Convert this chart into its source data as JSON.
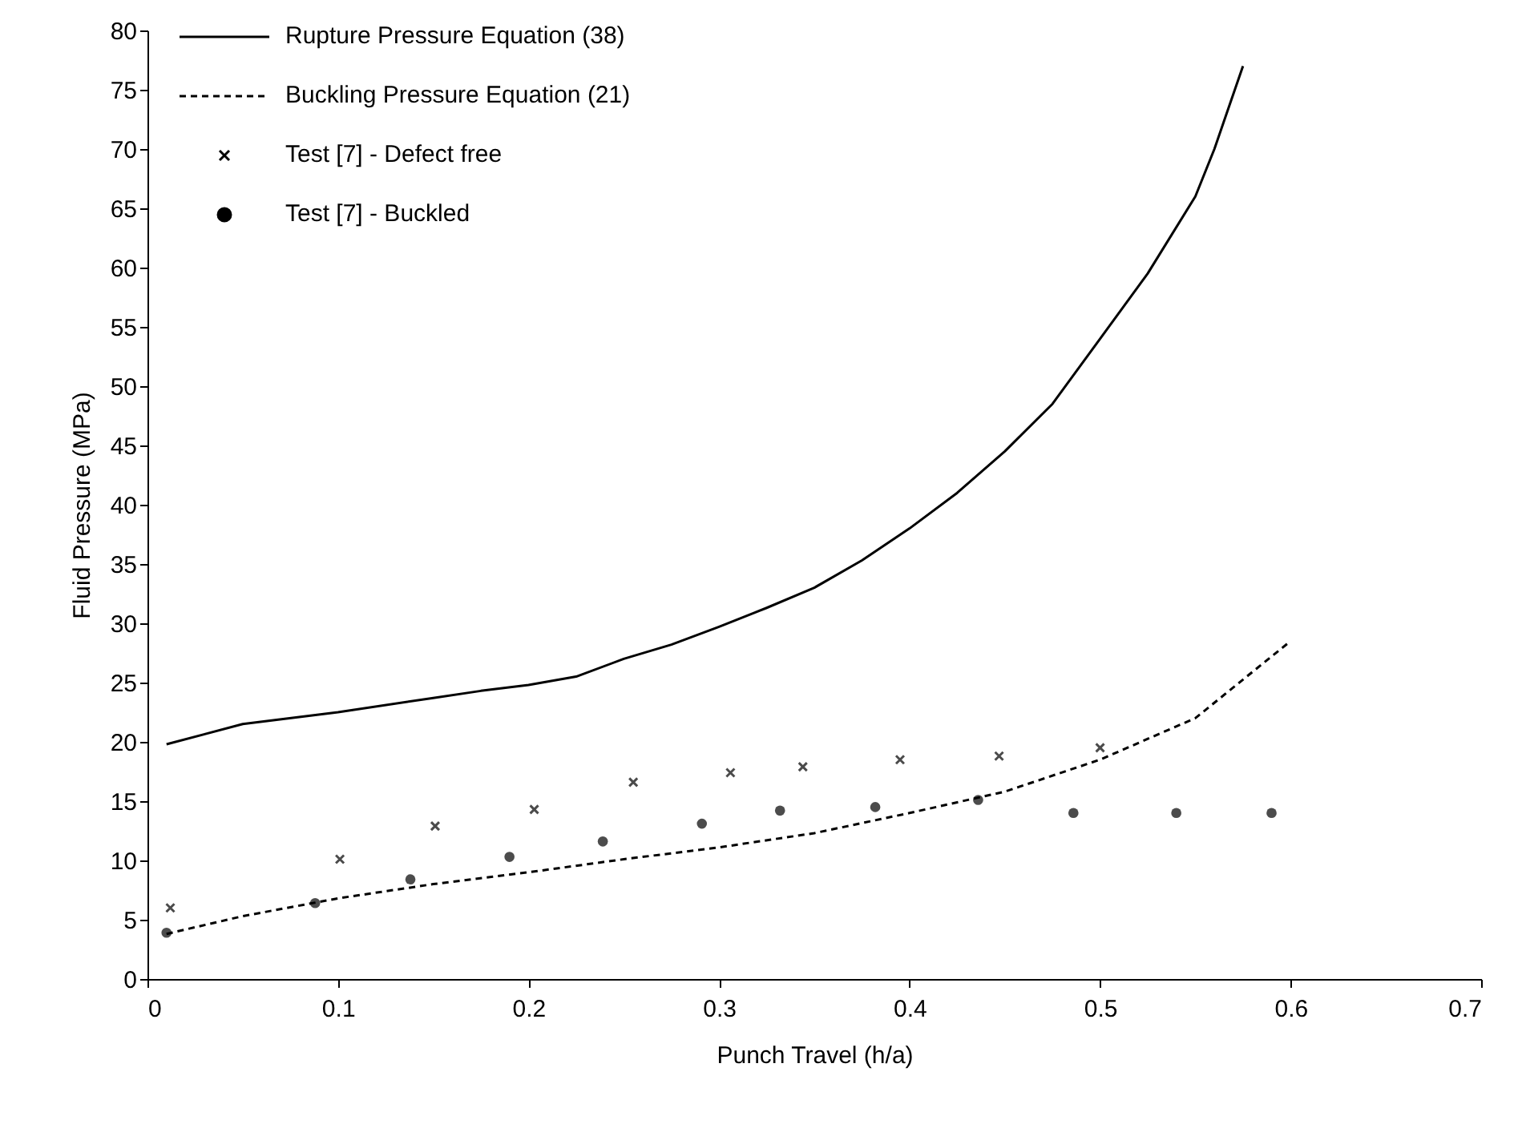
{
  "chart_data": {
    "type": "line",
    "xlabel": "Punch Travel (h/a)",
    "ylabel": "Fluid Pressure (MPa)",
    "xlim": [
      0,
      0.7
    ],
    "xticks": [
      {
        "value": 0,
        "label": "0"
      },
      0.1,
      0.2,
      0.3,
      0.4,
      0.5,
      0.6,
      0.7
    ],
    "ylim": [
      0,
      80
    ],
    "yticks": [
      0,
      5,
      10,
      15,
      20,
      25,
      30,
      35,
      40,
      45,
      50,
      55,
      60,
      65,
      70,
      75,
      80
    ],
    "grid": false,
    "legend": "top left",
    "series": [
      {
        "name": "Rupture Pressure Equation (38)",
        "line_style": "solid",
        "color": "#000000",
        "x": [
          0.01,
          0.05,
          0.1,
          0.15,
          0.175,
          0.2,
          0.225,
          0.25,
          0.275,
          0.3,
          0.325,
          0.35,
          0.375,
          0.4,
          0.425,
          0.45,
          0.475,
          0.5,
          0.525,
          0.55,
          0.56,
          0.575
        ],
        "values": [
          19.8,
          21.5,
          22.5,
          23.7,
          24.3,
          24.8,
          25.5,
          27,
          28.2,
          29.7,
          31.3,
          33,
          35.3,
          38,
          41,
          44.5,
          48.5,
          54,
          59.5,
          66,
          70,
          77
        ]
      },
      {
        "name": "Buckling Pressure Equation (21)",
        "line_style": "dashed",
        "color": "#000000",
        "x": [
          0.01,
          0.05,
          0.1,
          0.15,
          0.2,
          0.25,
          0.3,
          0.35,
          0.4,
          0.45,
          0.5,
          0.55,
          0.6
        ],
        "values": [
          3.8,
          5.3,
          6.8,
          8,
          9,
          10.1,
          11.1,
          12.3,
          14,
          15.8,
          18.5,
          22,
          28.5
        ]
      },
      {
        "name": "Test [7] - Defect free",
        "type": "scatter",
        "marker": "cross",
        "color": "#000000",
        "x": [
          0.012,
          0.101,
          0.151,
          0.203,
          0.255,
          0.306,
          0.344,
          0.395,
          0.447,
          0.5
        ],
        "values": [
          6,
          10.1,
          12.9,
          14.3,
          16.6,
          17.4,
          17.9,
          18.5,
          18.8,
          19.5
        ]
      },
      {
        "name": "Test [7] - Buckled",
        "type": "scatter",
        "marker": "circle",
        "color": "#000000",
        "x": [
          0.01,
          0.088,
          0.138,
          0.19,
          0.239,
          0.291,
          0.332,
          0.382,
          0.436,
          0.486,
          0.54,
          0.59
        ],
        "values": [
          3.9,
          6.4,
          8.4,
          10.3,
          11.6,
          13.1,
          14.2,
          14.5,
          15.1,
          14,
          14,
          14
        ]
      }
    ]
  }
}
